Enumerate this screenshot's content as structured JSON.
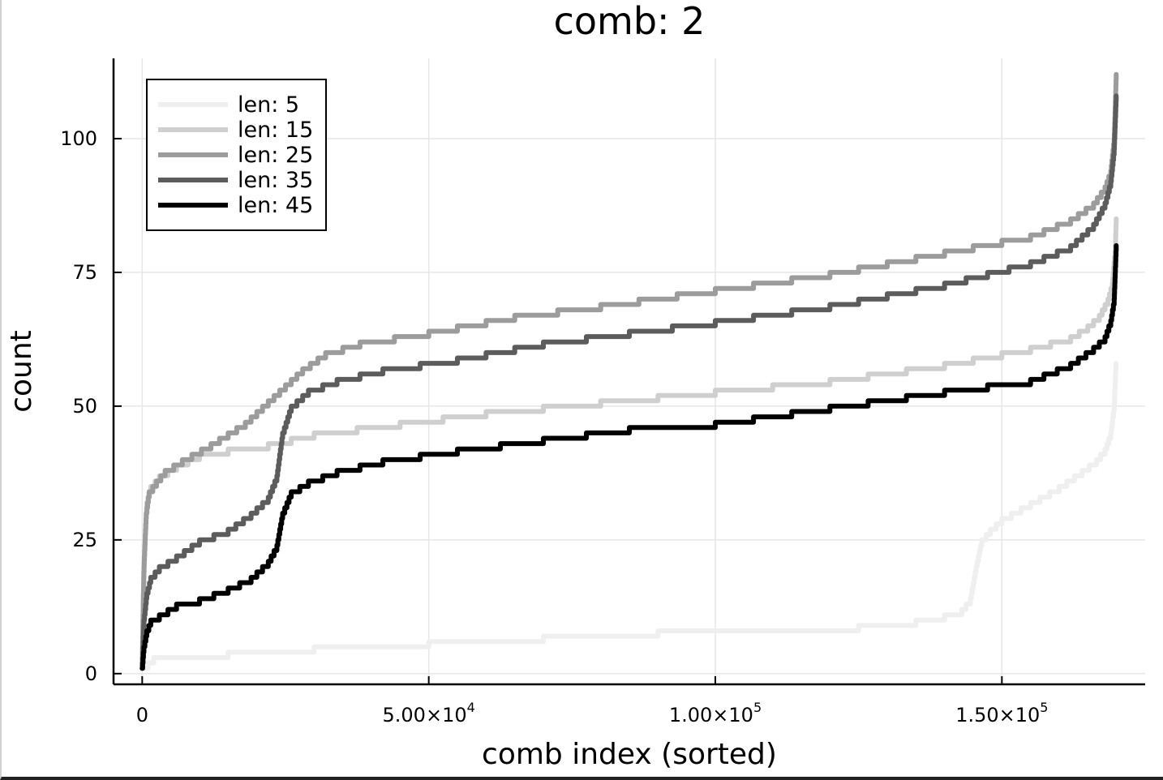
{
  "chart_data": {
    "type": "line",
    "title": "comb: 2",
    "xlabel": "comb index (sorted)",
    "ylabel": "count",
    "xlim": [
      -5000,
      175000
    ],
    "ylim": [
      -2,
      115
    ],
    "x_ticks": [
      {
        "value": 0,
        "base": "0",
        "sup": ""
      },
      {
        "value": 50000,
        "base": "5.00×10",
        "sup": "4"
      },
      {
        "value": 100000,
        "base": "1.00×10",
        "sup": "5"
      },
      {
        "value": 150000,
        "base": "1.50×10",
        "sup": "5"
      }
    ],
    "y_ticks": [
      {
        "value": 0,
        "label": "0"
      },
      {
        "value": 25,
        "label": "25"
      },
      {
        "value": 50,
        "label": "50"
      },
      {
        "value": 75,
        "label": "75"
      },
      {
        "value": 100,
        "label": "100"
      }
    ],
    "grid": true,
    "legend": "top-left",
    "series": [
      {
        "name": "len: 5",
        "color": "#efefef",
        "x": [
          0,
          1000,
          2000,
          5000,
          15000,
          30000,
          50000,
          70000,
          90000,
          110000,
          125000,
          135000,
          140000,
          143000,
          144500,
          145500,
          146500,
          148000,
          150000,
          155000,
          160000,
          164000,
          166500,
          168000,
          169000,
          169600,
          169900
        ],
        "y": [
          1,
          2,
          3,
          3,
          4,
          5,
          6,
          7,
          8,
          8,
          9,
          10,
          11,
          12,
          14,
          20,
          25,
          27,
          29,
          32,
          35,
          38,
          40,
          42,
          45,
          50,
          58
        ]
      },
      {
        "name": "len: 15",
        "color": "#cfcfcf",
        "x": [
          0,
          200,
          500,
          800,
          1500,
          3000,
          6000,
          10000,
          15000,
          22000,
          30000,
          45000,
          60000,
          80000,
          100000,
          120000,
          140000,
          155000,
          162000,
          165000,
          167000,
          168500,
          169300,
          169800,
          169950
        ],
        "y": [
          1,
          15,
          25,
          32,
          35,
          37,
          39,
          41,
          42,
          43,
          45,
          47,
          49,
          51,
          53,
          55,
          58,
          61,
          63,
          65,
          67,
          70,
          73,
          80,
          85
        ]
      },
      {
        "name": "len: 25",
        "color": "#9c9c9c",
        "x": [
          0,
          300,
          700,
          1200,
          2500,
          4000,
          7000,
          12000,
          18000,
          24000,
          28000,
          32000,
          38000,
          50000,
          65000,
          80000,
          100000,
          120000,
          140000,
          155000,
          162000,
          166000,
          168000,
          169000,
          169600,
          169950
        ],
        "y": [
          1,
          20,
          30,
          34,
          36,
          38,
          40,
          43,
          47,
          53,
          57,
          60,
          62,
          64,
          67,
          69,
          72,
          75,
          79,
          82,
          85,
          88,
          91,
          94,
          100,
          112
        ]
      },
      {
        "name": "len: 35",
        "color": "#5c5c5c",
        "x": [
          0,
          300,
          800,
          1500,
          3000,
          6000,
          10000,
          15000,
          19000,
          22000,
          23500,
          24500,
          26000,
          29000,
          34000,
          42000,
          55000,
          70000,
          85000,
          100000,
          120000,
          140000,
          155000,
          162000,
          166000,
          168000,
          169000,
          169600,
          169950
        ],
        "y": [
          1,
          10,
          15,
          18,
          20,
          22,
          25,
          27,
          30,
          33,
          37,
          45,
          50,
          53,
          55,
          57,
          59,
          62,
          64,
          66,
          69,
          73,
          77,
          80,
          84,
          88,
          92,
          98,
          108
        ]
      },
      {
        "name": "len: 45",
        "color": "#000000",
        "x": [
          0,
          300,
          800,
          1500,
          3000,
          6000,
          10000,
          15000,
          19000,
          22000,
          23500,
          24500,
          26000,
          29000,
          34000,
          42000,
          55000,
          70000,
          85000,
          100000,
          120000,
          140000,
          155000,
          162000,
          166000,
          168000,
          169000,
          169600,
          169950
        ],
        "y": [
          1,
          5,
          8,
          10,
          11,
          13,
          14,
          16,
          18,
          21,
          24,
          30,
          34,
          36,
          38,
          40,
          42,
          44,
          46,
          47,
          50,
          53,
          55,
          58,
          61,
          63,
          66,
          70,
          80
        ]
      }
    ]
  }
}
